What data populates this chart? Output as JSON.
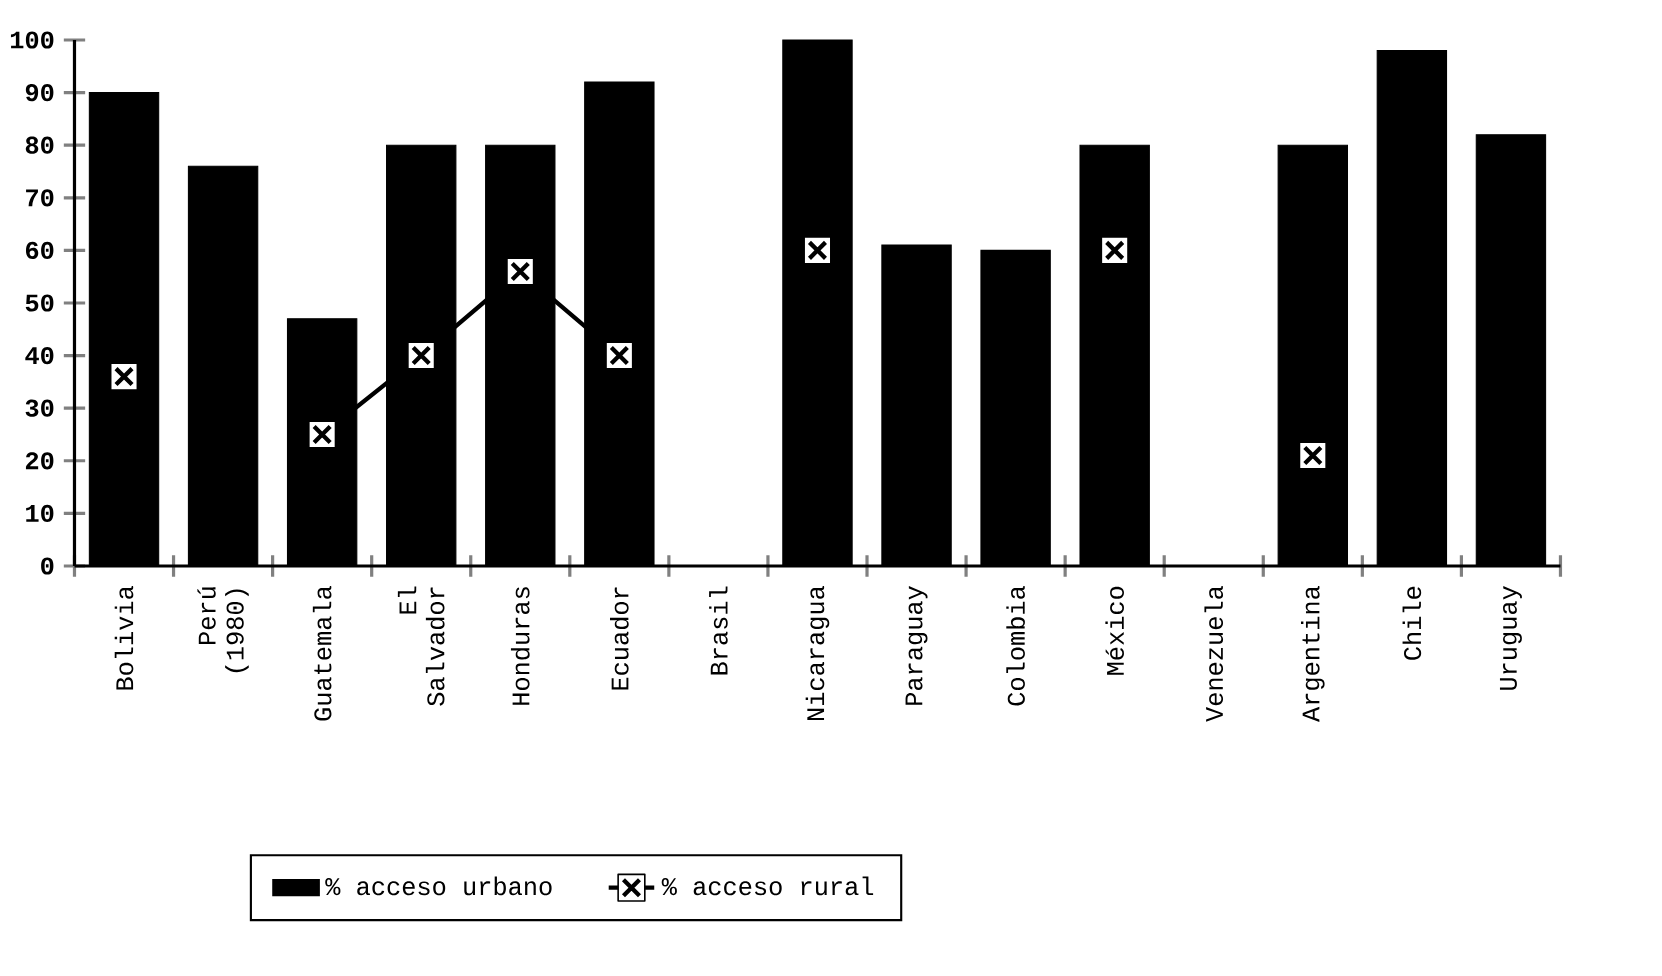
{
  "chart_data": {
    "type": "bar",
    "categories": [
      "Bolivia",
      "Perú (1980)",
      "Guatemala",
      "El Salvador",
      "Honduras",
      "Ecuador",
      "Brasil",
      "Nicaragua",
      "Paraguay",
      "Colombia",
      "México",
      "Venezuela",
      "Argentina",
      "Chile",
      "Uruguay"
    ],
    "series": [
      {
        "name": "% acceso urbano",
        "color": "#000000",
        "values": [
          90,
          76,
          47,
          80,
          80,
          92,
          null,
          100,
          61,
          60,
          80,
          null,
          80,
          98,
          82
        ]
      },
      {
        "name": "% acceso rural",
        "type": "line",
        "color": "#000000",
        "marker": "square",
        "values": [
          36,
          null,
          25,
          40,
          56,
          40,
          null,
          60,
          null,
          null,
          60,
          null,
          21,
          null,
          null
        ]
      }
    ],
    "ylim": [
      0,
      100
    ],
    "yticks": [
      0,
      10,
      20,
      30,
      40,
      50,
      60,
      70,
      80,
      90,
      100
    ],
    "grid": false,
    "legend": "bottom"
  }
}
